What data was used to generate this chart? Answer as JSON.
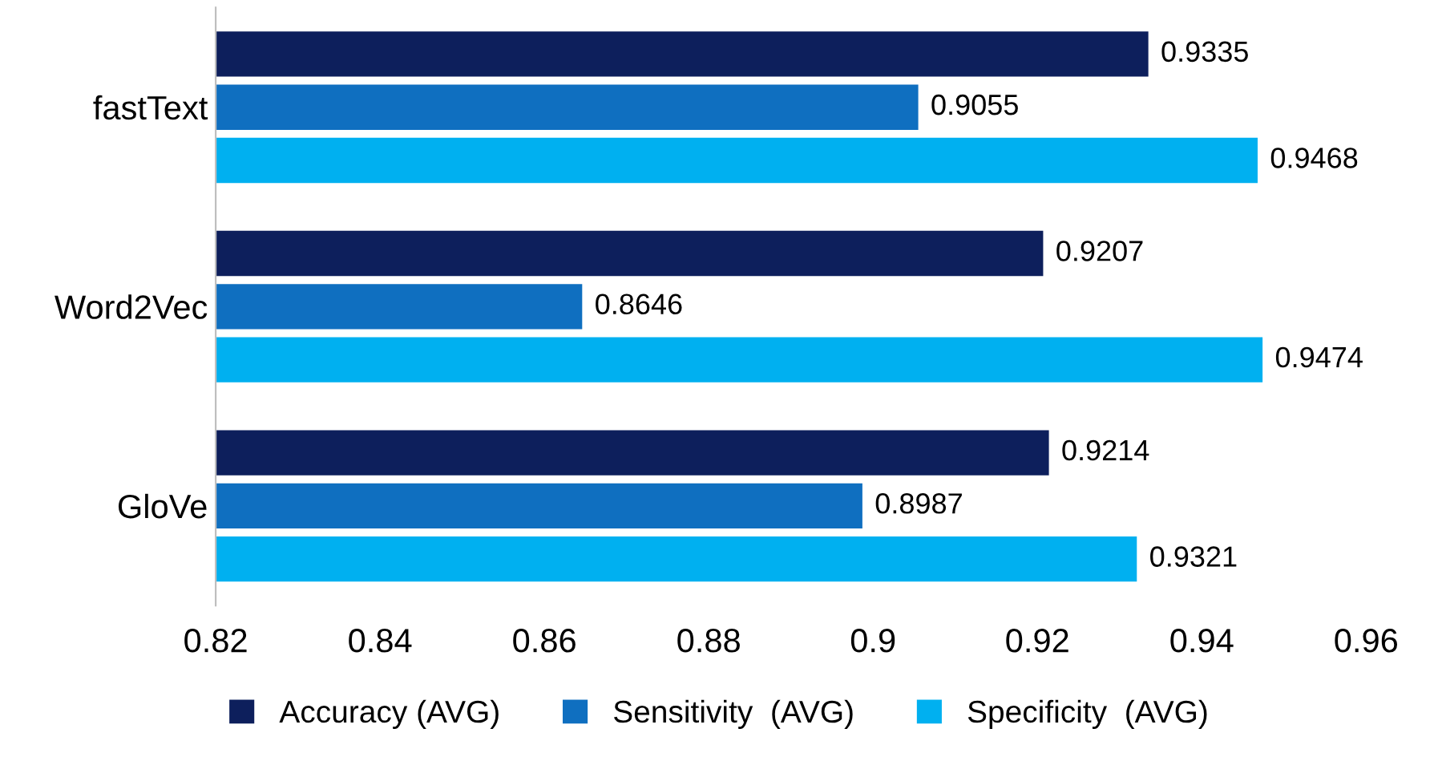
{
  "chart_data": {
    "type": "bar",
    "orientation": "horizontal",
    "categories": [
      "fastText",
      "Word2Vec",
      "GloVe"
    ],
    "series": [
      {
        "name": "Accuracy (AVG)",
        "color": "#0d1f5c",
        "values": [
          0.9335,
          0.9207,
          0.9214
        ]
      },
      {
        "name": "Sensitivity  (AVG)",
        "color": "#0f6fc0",
        "values": [
          0.9055,
          0.8646,
          0.8987
        ]
      },
      {
        "name": "Specificity  (AVG)",
        "color": "#00b0f0",
        "values": [
          0.9468,
          0.9474,
          0.9321
        ]
      }
    ],
    "xlim": [
      0.82,
      0.96
    ],
    "xticks": [
      0.82,
      0.84,
      0.86,
      0.88,
      0.9,
      0.92,
      0.94,
      0.96
    ],
    "data_labels": true,
    "grid": false,
    "legend": "bottom"
  }
}
